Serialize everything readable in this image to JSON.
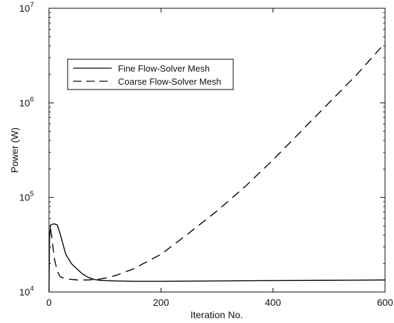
{
  "chart_data": {
    "type": "line",
    "title": "",
    "xlabel": "Iteration No.",
    "ylabel": "Power (W)",
    "xlim": [
      0,
      600
    ],
    "ylim": [
      10000,
      10000000
    ],
    "yscale": "log",
    "grid": false,
    "legend_position": "top-left",
    "x_ticks": [
      {
        "value": 0,
        "label": "0"
      },
      {
        "value": 200,
        "label": "200"
      },
      {
        "value": 400,
        "label": "400"
      },
      {
        "value": 600,
        "label": "600"
      }
    ],
    "y_ticks": [
      {
        "value": 10000,
        "base": "10",
        "exp": "4"
      },
      {
        "value": 100000,
        "base": "10",
        "exp": "5"
      },
      {
        "value": 1000000,
        "base": "10",
        "exp": "6"
      },
      {
        "value": 10000000,
        "base": "10",
        "exp": "7"
      }
    ],
    "series": [
      {
        "name": "Fine Flow-Solver Mesh",
        "style": "solid",
        "color": "#000000",
        "x": [
          0,
          1,
          3,
          5,
          10,
          15,
          20,
          25,
          30,
          40,
          50,
          60,
          70,
          80,
          90,
          100,
          120,
          150,
          200,
          300,
          400,
          500,
          600
        ],
        "y": [
          10000,
          40000,
          51000,
          52000,
          52500,
          51000,
          41000,
          32000,
          25000,
          20000,
          17500,
          15500,
          14300,
          13600,
          13300,
          13200,
          13100,
          13000,
          13000,
          13100,
          13200,
          13300,
          13400
        ]
      },
      {
        "name": "Coarse Flow-Solver Mesh",
        "style": "dashed",
        "color": "#000000",
        "x": [
          3,
          5,
          7,
          10,
          15,
          20,
          30,
          50,
          70,
          90,
          100,
          120,
          150,
          200,
          250,
          300,
          350,
          400,
          450,
          500,
          550,
          600
        ],
        "y": [
          46000,
          38000,
          30000,
          22000,
          16500,
          14500,
          13800,
          13400,
          13400,
          13700,
          14000,
          15000,
          17500,
          25000,
          42000,
          72000,
          130000,
          250000,
          500000,
          1000000,
          2000000,
          4300000
        ]
      }
    ]
  }
}
